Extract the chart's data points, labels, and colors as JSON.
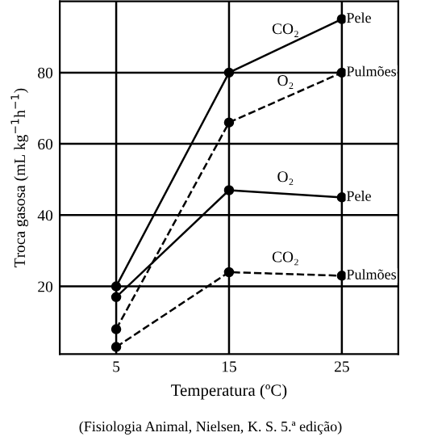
{
  "chart_data": {
    "type": "line",
    "xlabel": "Temperatura (ºC)",
    "ylabel": "Troca gasosa (mL kg$^{−1}$h$^{−1}$)",
    "x": [
      5,
      15,
      25
    ],
    "xlim": [
      0,
      30
    ],
    "xticks": [
      5,
      15,
      25
    ],
    "ylim": [
      1,
      100
    ],
    "yticks": [
      20,
      40,
      60,
      80
    ],
    "grid": true,
    "marker": "circle",
    "legend": false,
    "series": [
      {
        "name": "Pele",
        "color": "#000000",
        "line_style": "solid",
        "values": [
          20,
          80,
          95
        ]
      },
      {
        "name": "Pulmões",
        "color": "#000000",
        "line_style": "dashed",
        "values": [
          8,
          66,
          80
        ]
      },
      {
        "name": "Pele",
        "color": "#000000",
        "line_style": "solid",
        "values": [
          17,
          47,
          45
        ]
      },
      {
        "name": "Pulmões",
        "color": "#000000",
        "line_style": "dashed",
        "values": [
          3,
          24,
          23
        ]
      }
    ],
    "annotations": [
      "CO₂",
      "O₂",
      "O₂",
      "CO₂",
      "(Fisiologia Animal, Nielsen, K. S. 5.ª edição)"
    ]
  }
}
